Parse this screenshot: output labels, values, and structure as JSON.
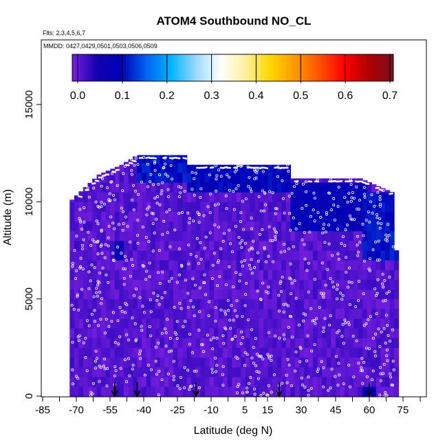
{
  "chart_data": {
    "type": "heatmap",
    "title": "ATOM4 Southbound NO_CL",
    "flights_note": "Flts: 2,3,4,5,6,7",
    "dates_note": "MMDD: 0427,0429,0501,0503,0506,0509",
    "xlabel": "Latitude (deg N)",
    "ylabel": "Altitude (m)",
    "xlim": [
      -90,
      90
    ],
    "ylim": [
      0,
      18000
    ],
    "x_ticks": [
      -85,
      -70,
      -55,
      -40,
      -25,
      -10,
      5,
      15,
      30,
      45,
      60,
      75
    ],
    "x_tick_labels": [
      "-85",
      "-70",
      "-55",
      "-40",
      "-25",
      "-10",
      "5",
      "15",
      "30",
      "45",
      "60",
      "75"
    ],
    "y_ticks": [
      0,
      5000,
      10000,
      15000
    ],
    "y_tick_labels": [
      "0",
      "5000",
      "10000",
      "15000"
    ],
    "colorbar": {
      "range": [
        0,
        0.72
      ],
      "ticks": [
        0.0,
        0.1,
        0.2,
        0.3,
        0.4,
        0.5,
        0.6,
        0.7
      ],
      "tick_labels": [
        "0.0",
        "0.1",
        "0.2",
        "0.3",
        "0.4",
        "0.5",
        "0.6",
        "0.7"
      ],
      "colors": [
        "#7a1fe0",
        "#1400b0",
        "#0000b8",
        "#0062f0",
        "#00b4ff",
        "#9ad8ff",
        "#ffffff",
        "#fff0a0",
        "#ffd800",
        "#ff9a00",
        "#ff5200",
        "#ff0000",
        "#b00000",
        "#7a1020"
      ]
    },
    "domain_top": [
      {
        "lat": -73,
        "alt": 10000
      },
      {
        "lat": -60,
        "alt": 11400
      },
      {
        "lat": -50,
        "alt": 11900
      },
      {
        "lat": -43,
        "alt": 12400
      },
      {
        "lat": -22,
        "alt": 12400
      },
      {
        "lat": -20,
        "alt": 11900
      },
      {
        "lat": 25,
        "alt": 11900
      },
      {
        "lat": 25,
        "alt": 11200
      },
      {
        "lat": 56,
        "alt": 11200
      },
      {
        "lat": 70,
        "alt": 10500
      },
      {
        "lat": 72,
        "alt": 7500
      }
    ],
    "high_value_regions": [
      {
        "lat_range": [
          -43,
          -20
        ],
        "alt_range": [
          11000,
          12400
        ],
        "value": 0.12
      },
      {
        "lat_range": [
          -20,
          25
        ],
        "alt_range": [
          10500,
          11900
        ],
        "value": 0.11
      },
      {
        "lat_range": [
          25,
          58
        ],
        "alt_range": [
          8500,
          11200
        ],
        "value": 0.1
      },
      {
        "lat_range": [
          58,
          72
        ],
        "alt_range": [
          7000,
          10500
        ],
        "value": 0.12
      },
      {
        "lat_range": [
          -53,
          -50
        ],
        "alt_range": [
          7000,
          8000
        ],
        "value": 0.1
      },
      {
        "lat_range": [
          57,
          63
        ],
        "alt_range": [
          0,
          500
        ],
        "value": 0.1
      }
    ],
    "background_value": 0.02,
    "markers_latitudes": [
      -53,
      -43,
      -17,
      20,
      60
    ]
  }
}
